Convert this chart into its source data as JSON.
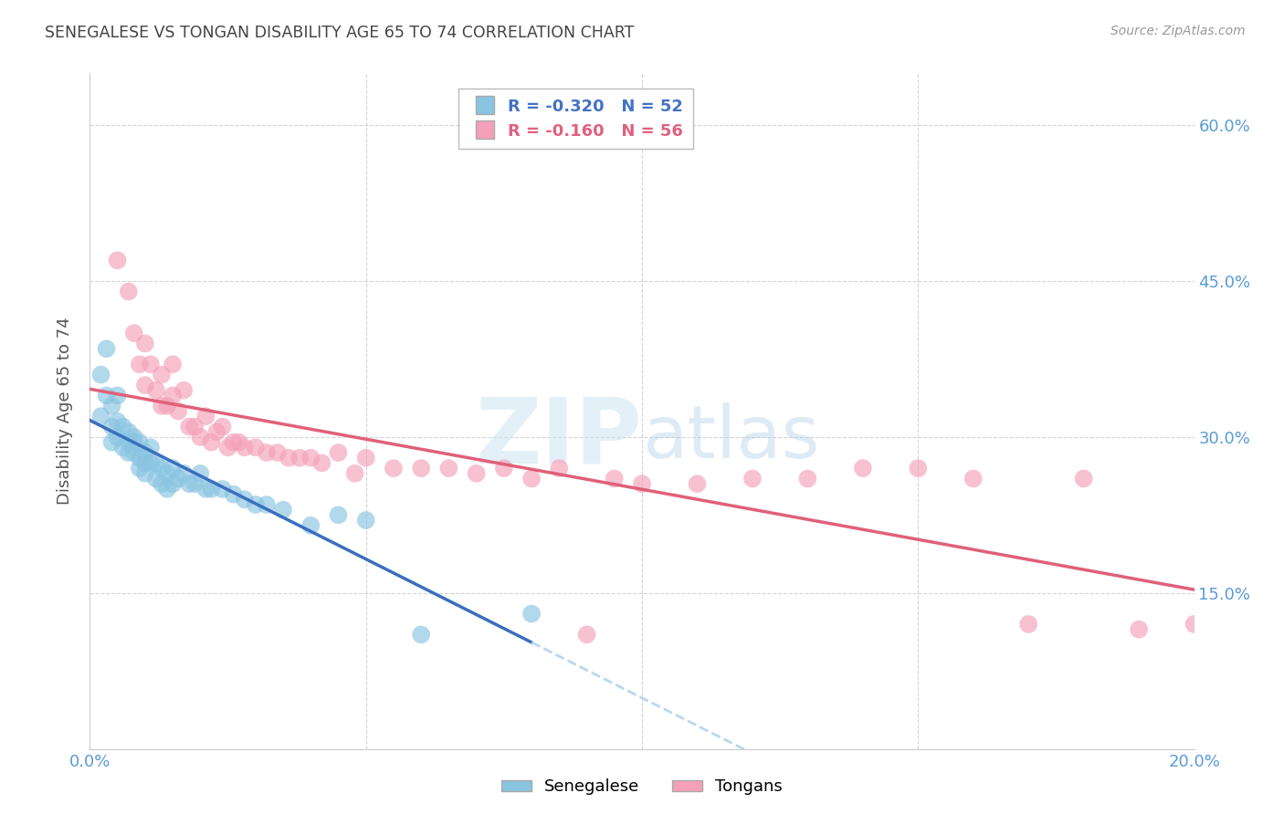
{
  "title": "SENEGALESE VS TONGAN DISABILITY AGE 65 TO 74 CORRELATION CHART",
  "source": "Source: ZipAtlas.com",
  "ylabel": "Disability Age 65 to 74",
  "watermark": "ZIPatlas",
  "senegalese_r": -0.32,
  "senegalese_n": 52,
  "tongan_r": -0.16,
  "tongan_n": 56,
  "xlim": [
    0.0,
    0.2
  ],
  "ylim": [
    0.0,
    0.65
  ],
  "xticks": [
    0.0,
    0.05,
    0.1,
    0.15,
    0.2
  ],
  "xtick_labels": [
    "0.0%",
    "",
    "",
    "",
    "20.0%"
  ],
  "yticks": [
    0.0,
    0.15,
    0.3,
    0.45,
    0.6
  ],
  "ytick_labels_right": [
    "",
    "15.0%",
    "30.0%",
    "45.0%",
    "60.0%"
  ],
  "blue_scatter_color": "#89c4e1",
  "pink_scatter_color": "#f4a0b8",
  "blue_line_color": "#3a6fbf",
  "pink_line_color": "#e0607a",
  "blue_dashed_color": "#b8d8ee",
  "background_color": "#ffffff",
  "grid_color": "#c8c8c8",
  "title_color": "#444444",
  "axis_tick_color": "#5b9bd5",
  "legend_r_color_blue": "#4472c4",
  "legend_r_color_pink": "#e06080",
  "senegalese_x": [
    0.002,
    0.002,
    0.003,
    0.003,
    0.004,
    0.004,
    0.004,
    0.005,
    0.005,
    0.005,
    0.006,
    0.006,
    0.007,
    0.007,
    0.007,
    0.008,
    0.008,
    0.008,
    0.009,
    0.009,
    0.009,
    0.01,
    0.01,
    0.01,
    0.011,
    0.011,
    0.012,
    0.012,
    0.013,
    0.013,
    0.014,
    0.014,
    0.015,
    0.015,
    0.016,
    0.017,
    0.018,
    0.019,
    0.02,
    0.021,
    0.022,
    0.024,
    0.026,
    0.028,
    0.03,
    0.032,
    0.035,
    0.04,
    0.045,
    0.05,
    0.06,
    0.08
  ],
  "senegalese_y": [
    0.36,
    0.32,
    0.385,
    0.34,
    0.31,
    0.33,
    0.295,
    0.315,
    0.3,
    0.34,
    0.29,
    0.31,
    0.295,
    0.285,
    0.305,
    0.3,
    0.285,
    0.295,
    0.28,
    0.295,
    0.27,
    0.275,
    0.285,
    0.265,
    0.29,
    0.275,
    0.275,
    0.26,
    0.27,
    0.255,
    0.265,
    0.25,
    0.27,
    0.255,
    0.26,
    0.265,
    0.255,
    0.255,
    0.265,
    0.25,
    0.25,
    0.25,
    0.245,
    0.24,
    0.235,
    0.235,
    0.23,
    0.215,
    0.225,
    0.22,
    0.11,
    0.13
  ],
  "tongan_x": [
    0.005,
    0.007,
    0.008,
    0.009,
    0.01,
    0.01,
    0.011,
    0.012,
    0.013,
    0.013,
    0.014,
    0.015,
    0.015,
    0.016,
    0.017,
    0.018,
    0.019,
    0.02,
    0.021,
    0.022,
    0.023,
    0.024,
    0.025,
    0.026,
    0.027,
    0.028,
    0.03,
    0.032,
    0.034,
    0.036,
    0.038,
    0.04,
    0.042,
    0.045,
    0.048,
    0.05,
    0.055,
    0.06,
    0.065,
    0.07,
    0.075,
    0.08,
    0.085,
    0.09,
    0.095,
    0.1,
    0.11,
    0.12,
    0.13,
    0.14,
    0.15,
    0.16,
    0.17,
    0.18,
    0.19,
    0.2
  ],
  "tongan_y": [
    0.47,
    0.44,
    0.4,
    0.37,
    0.39,
    0.35,
    0.37,
    0.345,
    0.36,
    0.33,
    0.33,
    0.34,
    0.37,
    0.325,
    0.345,
    0.31,
    0.31,
    0.3,
    0.32,
    0.295,
    0.305,
    0.31,
    0.29,
    0.295,
    0.295,
    0.29,
    0.29,
    0.285,
    0.285,
    0.28,
    0.28,
    0.28,
    0.275,
    0.285,
    0.265,
    0.28,
    0.27,
    0.27,
    0.27,
    0.265,
    0.27,
    0.26,
    0.27,
    0.11,
    0.26,
    0.255,
    0.255,
    0.26,
    0.26,
    0.27,
    0.27,
    0.26,
    0.12,
    0.26,
    0.115,
    0.12
  ]
}
